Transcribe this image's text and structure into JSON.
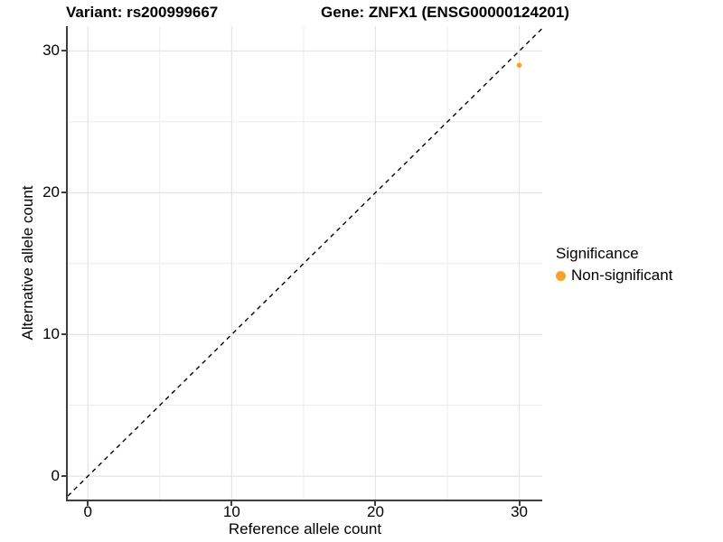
{
  "chart_data": {
    "type": "scatter",
    "title_left": "Variant: rs200999667",
    "title_right": "Gene: ZNFX1 (ENSG00000124201)",
    "xlabel": "Reference allele count",
    "ylabel": "Alternative allele count",
    "xlim": [
      -1.4,
      31.6
    ],
    "ylim": [
      -1.65,
      31.75
    ],
    "xticks": [
      0,
      10,
      20,
      30
    ],
    "yticks": [
      0,
      10,
      20,
      30
    ],
    "xminor": [
      5,
      15,
      25
    ],
    "yminor": [
      5,
      15,
      25
    ],
    "grid": "on",
    "identity_line": {
      "slope": 1,
      "intercept": 0,
      "style": "dashed",
      "color": "#000000"
    },
    "series": [
      {
        "name": "Non-significant",
        "color": "#F9A02B",
        "points": [
          {
            "x": 30,
            "y": 29
          }
        ]
      }
    ],
    "legend": {
      "title": "Significance",
      "position": "right",
      "items": [
        {
          "label": "Non-significant",
          "color": "#F9A02B"
        }
      ]
    }
  },
  "colors": {
    "background": "#FFFFFF",
    "axis": "#3F3F3F",
    "grid_major": "#E4E4E4",
    "grid_minor": "#ECECEC",
    "text": "#000000",
    "point": "#F9A02B"
  }
}
